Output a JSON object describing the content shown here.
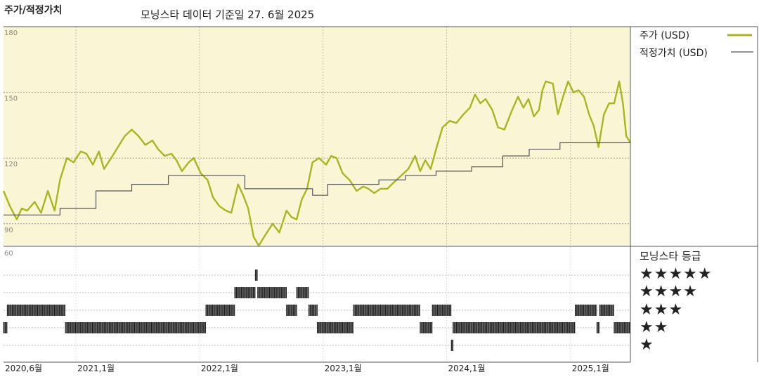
{
  "header": {
    "title": "주가/적정가치",
    "subtitle": "모닝스타 데이터 기준일 27. 6월 2025"
  },
  "legend": {
    "price_label": "주가 (USD)",
    "fair_label": "적정가치 (USD)"
  },
  "rating": {
    "title": "모닝스타 등급",
    "star_rows": [
      "★★★★★",
      "★★★★",
      "★★★",
      "★★",
      "★"
    ]
  },
  "colors": {
    "price": "#a8b520",
    "fair": "#555555",
    "plot_bg": "#faf6d5",
    "band": "#333333"
  },
  "chart_data": [
    {
      "type": "line",
      "x_type": "date",
      "xlim": [
        "2020-06-01",
        "2025-06-27"
      ],
      "ylim": [
        80,
        180
      ],
      "y_ticks": [
        180,
        150,
        120,
        90
      ],
      "x_ticks": [
        {
          "date": "2020-06-01",
          "label": "2020,6월"
        },
        {
          "date": "2021-01-01",
          "label": "2021,1월"
        },
        {
          "date": "2022-01-01",
          "label": "2022,1월"
        },
        {
          "date": "2023-01-01",
          "label": "2023,1월"
        },
        {
          "date": "2024-01-01",
          "label": "2024,1월"
        },
        {
          "date": "2025-01-01",
          "label": "2025,1월"
        }
      ],
      "series": [
        {
          "name": "주가 (USD)",
          "points": [
            [
              "2020-06-01",
              105
            ],
            [
              "2020-06-20",
              98
            ],
            [
              "2020-07-10",
              92
            ],
            [
              "2020-07-25",
              97
            ],
            [
              "2020-08-10",
              96
            ],
            [
              "2020-09-01",
              100
            ],
            [
              "2020-09-20",
              95
            ],
            [
              "2020-10-10",
              105
            ],
            [
              "2020-10-30",
              96
            ],
            [
              "2020-11-15",
              110
            ],
            [
              "2020-12-05",
              120
            ],
            [
              "2020-12-25",
              118
            ],
            [
              "2021-01-15",
              123
            ],
            [
              "2021-02-01",
              122
            ],
            [
              "2021-02-20",
              117
            ],
            [
              "2021-03-10",
              123
            ],
            [
              "2021-03-25",
              115
            ],
            [
              "2021-04-15",
              120
            ],
            [
              "2021-05-05",
              125
            ],
            [
              "2021-05-25",
              130
            ],
            [
              "2021-06-15",
              133
            ],
            [
              "2021-07-05",
              130
            ],
            [
              "2021-07-25",
              126
            ],
            [
              "2021-08-15",
              128
            ],
            [
              "2021-09-01",
              124
            ],
            [
              "2021-09-20",
              121
            ],
            [
              "2021-10-10",
              122
            ],
            [
              "2021-10-25",
              119
            ],
            [
              "2021-11-10",
              114
            ],
            [
              "2021-11-30",
              118
            ],
            [
              "2021-12-15",
              120
            ],
            [
              "2022-01-05",
              113
            ],
            [
              "2022-01-25",
              110
            ],
            [
              "2022-02-10",
              102
            ],
            [
              "2022-03-01",
              98
            ],
            [
              "2022-03-20",
              96
            ],
            [
              "2022-04-05",
              95
            ],
            [
              "2022-04-25",
              108
            ],
            [
              "2022-05-10",
              103
            ],
            [
              "2022-05-25",
              97
            ],
            [
              "2022-06-10",
              84
            ],
            [
              "2022-06-25",
              80
            ],
            [
              "2022-07-15",
              85
            ],
            [
              "2022-08-05",
              90
            ],
            [
              "2022-08-25",
              86
            ],
            [
              "2022-09-15",
              96
            ],
            [
              "2022-09-30",
              93
            ],
            [
              "2022-10-15",
              92
            ],
            [
              "2022-10-30",
              101
            ],
            [
              "2022-11-15",
              106
            ],
            [
              "2022-12-01",
              118
            ],
            [
              "2022-12-20",
              120
            ],
            [
              "2023-01-10",
              117
            ],
            [
              "2023-01-25",
              121
            ],
            [
              "2023-02-10",
              120
            ],
            [
              "2023-02-28",
              113
            ],
            [
              "2023-03-20",
              110
            ],
            [
              "2023-04-10",
              105
            ],
            [
              "2023-04-30",
              107
            ],
            [
              "2023-05-15",
              106
            ],
            [
              "2023-06-01",
              104
            ],
            [
              "2023-06-20",
              106
            ],
            [
              "2023-07-10",
              106
            ],
            [
              "2023-07-30",
              109
            ],
            [
              "2023-08-20",
              112
            ],
            [
              "2023-09-10",
              115
            ],
            [
              "2023-09-30",
              121
            ],
            [
              "2023-10-15",
              114
            ],
            [
              "2023-10-30",
              119
            ],
            [
              "2023-11-15",
              115
            ],
            [
              "2023-12-01",
              124
            ],
            [
              "2023-12-20",
              134
            ],
            [
              "2024-01-10",
              137
            ],
            [
              "2024-01-30",
              136
            ],
            [
              "2024-02-20",
              140
            ],
            [
              "2024-03-10",
              143
            ],
            [
              "2024-03-25",
              149
            ],
            [
              "2024-04-10",
              145
            ],
            [
              "2024-04-25",
              147
            ],
            [
              "2024-05-15",
              142
            ],
            [
              "2024-06-01",
              134
            ],
            [
              "2024-06-20",
              133
            ],
            [
              "2024-07-10",
              141
            ],
            [
              "2024-07-30",
              148
            ],
            [
              "2024-08-15",
              143
            ],
            [
              "2024-08-30",
              147
            ],
            [
              "2024-09-15",
              139
            ],
            [
              "2024-09-30",
              142
            ],
            [
              "2024-10-10",
              151
            ],
            [
              "2024-10-20",
              155
            ],
            [
              "2024-11-10",
              154
            ],
            [
              "2024-11-25",
              140
            ],
            [
              "2024-12-10",
              148
            ],
            [
              "2024-12-25",
              155
            ],
            [
              "2025-01-10",
              150
            ],
            [
              "2025-01-25",
              151
            ],
            [
              "2025-02-10",
              148
            ],
            [
              "2025-02-25",
              140
            ],
            [
              "2025-03-10",
              135
            ],
            [
              "2025-03-25",
              125
            ],
            [
              "2025-04-10",
              140
            ],
            [
              "2025-04-25",
              145
            ],
            [
              "2025-05-10",
              145
            ],
            [
              "2025-05-25",
              155
            ],
            [
              "2025-06-05",
              145
            ],
            [
              "2025-06-15",
              130
            ],
            [
              "2025-06-27",
              127
            ]
          ]
        },
        {
          "name": "적정가치 (USD)",
          "step": true,
          "points": [
            [
              "2020-06-01",
              94
            ],
            [
              "2020-11-15",
              97
            ],
            [
              "2021-03-01",
              105
            ],
            [
              "2021-06-15",
              108
            ],
            [
              "2021-10-01",
              112
            ],
            [
              "2022-05-15",
              106
            ],
            [
              "2022-12-01",
              103
            ],
            [
              "2023-01-15",
              108
            ],
            [
              "2023-06-15",
              110
            ],
            [
              "2023-09-01",
              112
            ],
            [
              "2023-12-01",
              114
            ],
            [
              "2024-03-15",
              116
            ],
            [
              "2024-06-15",
              121
            ],
            [
              "2024-09-01",
              124
            ],
            [
              "2024-12-01",
              127
            ],
            [
              "2025-06-27",
              127
            ]
          ]
        }
      ]
    },
    {
      "type": "heatmap",
      "description_rows": [
        5,
        4,
        3,
        2,
        1
      ],
      "ymax_label": "60",
      "ratings": [
        [
          "2020-06-01",
          "2020-06-12",
          2
        ],
        [
          "2020-06-12",
          "2020-12-01",
          3
        ],
        [
          "2020-12-01",
          "2022-01-20",
          2
        ],
        [
          "2022-01-20",
          "2022-04-15",
          3
        ],
        [
          "2022-04-15",
          "2022-06-15",
          4
        ],
        [
          "2022-06-15",
          "2022-06-22",
          5
        ],
        [
          "2022-06-22",
          "2022-09-15",
          4
        ],
        [
          "2022-09-15",
          "2022-10-15",
          3
        ],
        [
          "2022-10-15",
          "2022-11-20",
          4
        ],
        [
          "2022-11-20",
          "2022-12-15",
          3
        ],
        [
          "2022-12-15",
          "2023-04-01",
          2
        ],
        [
          "2023-04-01",
          "2023-10-15",
          3
        ],
        [
          "2023-10-15",
          "2023-11-20",
          2
        ],
        [
          "2023-11-20",
          "2024-01-15",
          3
        ],
        [
          "2024-01-15",
          "2024-01-20",
          1
        ],
        [
          "2024-01-20",
          "2025-01-15",
          2
        ],
        [
          "2025-01-15",
          "2025-03-20",
          3
        ],
        [
          "2025-03-20",
          "2025-03-28",
          2
        ],
        [
          "2025-03-28",
          "2025-05-10",
          3
        ],
        [
          "2025-05-10",
          "2025-06-27",
          2
        ]
      ]
    }
  ]
}
